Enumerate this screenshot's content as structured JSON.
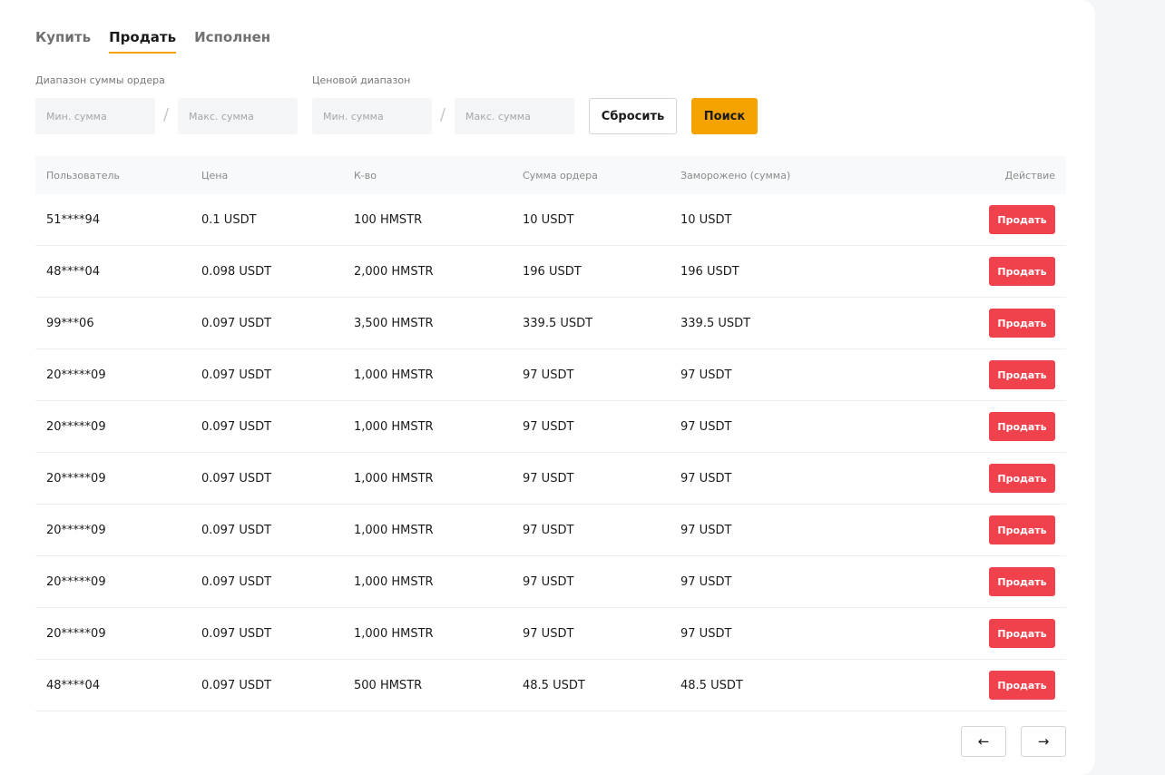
{
  "tabs": [
    {
      "label": "Купить",
      "active": false
    },
    {
      "label": "Продать",
      "active": true
    },
    {
      "label": "Исполнен",
      "active": false
    }
  ],
  "filters": {
    "order_amount_label": "Диапазон суммы ордера",
    "price_range_label": "Ценовой диапазон",
    "min_placeholder": "Мин. сумма",
    "max_placeholder": "Макс. сумма",
    "separator": "/",
    "reset_label": "Сбросить",
    "search_label": "Поиск"
  },
  "table": {
    "headers": [
      "Пользователь",
      "Цена",
      "К-во",
      "Сумма ордера",
      "Заморожено (сумма)",
      "Действие"
    ],
    "action_label": "Продать",
    "rows": [
      {
        "user": "51****94",
        "price": "0.1 USDT",
        "qty": "100 HMSTR",
        "amount": "10 USDT",
        "frozen": "10 USDT"
      },
      {
        "user": "48****04",
        "price": "0.098 USDT",
        "qty": "2,000 HMSTR",
        "amount": "196 USDT",
        "frozen": "196 USDT"
      },
      {
        "user": "99***06",
        "price": "0.097 USDT",
        "qty": "3,500 HMSTR",
        "amount": "339.5 USDT",
        "frozen": "339.5 USDT"
      },
      {
        "user": "20*****09",
        "price": "0.097 USDT",
        "qty": "1,000 HMSTR",
        "amount": "97 USDT",
        "frozen": "97 USDT"
      },
      {
        "user": "20*****09",
        "price": "0.097 USDT",
        "qty": "1,000 HMSTR",
        "amount": "97 USDT",
        "frozen": "97 USDT"
      },
      {
        "user": "20*****09",
        "price": "0.097 USDT",
        "qty": "1,000 HMSTR",
        "amount": "97 USDT",
        "frozen": "97 USDT"
      },
      {
        "user": "20*****09",
        "price": "0.097 USDT",
        "qty": "1,000 HMSTR",
        "amount": "97 USDT",
        "frozen": "97 USDT"
      },
      {
        "user": "20*****09",
        "price": "0.097 USDT",
        "qty": "1,000 HMSTR",
        "amount": "97 USDT",
        "frozen": "97 USDT"
      },
      {
        "user": "20*****09",
        "price": "0.097 USDT",
        "qty": "1,000 HMSTR",
        "amount": "97 USDT",
        "frozen": "97 USDT"
      },
      {
        "user": "48****04",
        "price": "0.097 USDT",
        "qty": "500 HMSTR",
        "amount": "48.5 USDT",
        "frozen": "48.5 USDT"
      }
    ]
  },
  "pagination": {
    "prev_icon": "arrow-left-icon",
    "next_icon": "arrow-right-icon",
    "prev_glyph": "←",
    "next_glyph": "→"
  },
  "colors": {
    "accent": "#f5a300",
    "sell": "#f0424d"
  }
}
